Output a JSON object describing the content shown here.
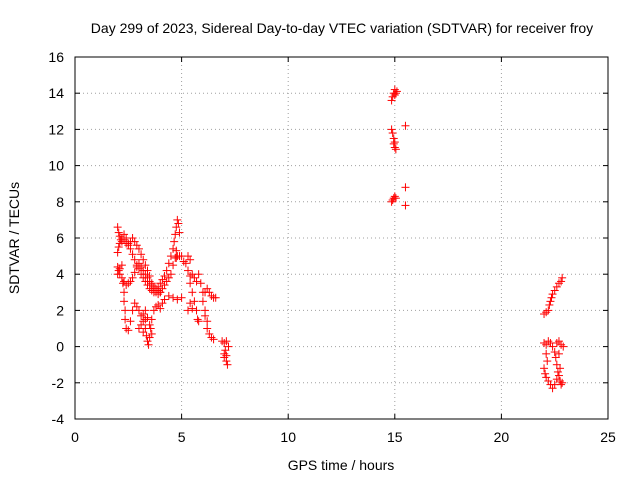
{
  "chart_data": {
    "type": "scatter",
    "title": "Day 299 of 2023, Sidereal Day-to-day VTEC variation (SDTVAR) for receiver froy",
    "xlabel": "GPS time / hours",
    "ylabel": "SDTVAR / TECUs",
    "xlim": [
      0,
      25
    ],
    "ylim": [
      -4,
      16
    ],
    "xticks": [
      "0",
      "5",
      "10",
      "15",
      "20",
      "25"
    ],
    "yticks": [
      "-4",
      "-2",
      "0",
      "2",
      "4",
      "6",
      "8",
      "10",
      "12",
      "14",
      "16"
    ],
    "grid": true,
    "marker": "+",
    "color": "#ff0000",
    "series": [
      {
        "name": "SDTVAR",
        "points": [
          [
            2.0,
            6.6
          ],
          [
            2.05,
            6.3
          ],
          [
            2.1,
            6.1
          ],
          [
            2.15,
            5.9
          ],
          [
            2.2,
            5.8
          ],
          [
            2.3,
            5.9
          ],
          [
            2.4,
            5.7
          ],
          [
            2.5,
            5.6
          ],
          [
            2.6,
            5.8
          ],
          [
            2.7,
            6.0
          ],
          [
            2.8,
            5.8
          ],
          [
            2.9,
            5.6
          ],
          [
            3.0,
            5.4
          ],
          [
            3.1,
            5.1
          ],
          [
            3.2,
            4.8
          ],
          [
            3.3,
            4.5
          ],
          [
            3.4,
            4.2
          ],
          [
            3.5,
            3.9
          ],
          [
            3.6,
            3.5
          ],
          [
            3.7,
            3.2
          ],
          [
            3.8,
            3.0
          ],
          [
            3.9,
            2.9
          ],
          [
            4.0,
            3.0
          ],
          [
            4.1,
            3.2
          ],
          [
            4.2,
            3.4
          ],
          [
            4.3,
            3.6
          ],
          [
            4.4,
            3.8
          ],
          [
            4.5,
            4.0
          ],
          [
            4.6,
            4.5
          ],
          [
            4.7,
            4.9
          ],
          [
            4.75,
            5.3
          ],
          [
            2.0,
            5.2
          ],
          [
            2.05,
            5.5
          ],
          [
            2.1,
            5.7
          ],
          [
            2.2,
            6.0
          ],
          [
            2.3,
            6.2
          ],
          [
            2.4,
            6.0
          ],
          [
            2.5,
            5.7
          ],
          [
            2.6,
            5.4
          ],
          [
            2.7,
            5.1
          ],
          [
            2.8,
            4.8
          ],
          [
            2.9,
            4.5
          ],
          [
            3.0,
            4.3
          ],
          [
            3.1,
            4.0
          ],
          [
            3.2,
            3.8
          ],
          [
            3.3,
            3.6
          ],
          [
            3.4,
            3.4
          ],
          [
            3.5,
            3.2
          ],
          [
            3.6,
            3.1
          ],
          [
            3.7,
            3.0
          ],
          [
            3.8,
            3.1
          ],
          [
            3.9,
            3.3
          ],
          [
            4.0,
            3.5
          ],
          [
            4.1,
            3.7
          ],
          [
            4.2,
            3.9
          ],
          [
            4.3,
            4.2
          ],
          [
            4.4,
            4.6
          ],
          [
            4.5,
            5.0
          ],
          [
            4.6,
            5.4
          ],
          [
            4.65,
            5.8
          ],
          [
            4.7,
            6.2
          ],
          [
            4.75,
            6.6
          ],
          [
            4.8,
            7.0
          ],
          [
            4.85,
            6.8
          ],
          [
            4.9,
            6.3
          ],
          [
            2.0,
            4.4
          ],
          [
            2.05,
            4.2
          ],
          [
            2.1,
            4.0
          ],
          [
            2.2,
            3.8
          ],
          [
            2.3,
            3.6
          ],
          [
            2.4,
            3.4
          ],
          [
            2.5,
            3.5
          ],
          [
            2.6,
            3.6
          ],
          [
            2.7,
            3.8
          ],
          [
            2.8,
            4.1
          ],
          [
            2.9,
            4.4
          ],
          [
            3.0,
            4.6
          ],
          [
            3.1,
            4.4
          ],
          [
            3.2,
            4.2
          ],
          [
            3.3,
            4.0
          ],
          [
            3.4,
            3.8
          ],
          [
            3.5,
            3.6
          ],
          [
            3.6,
            3.4
          ],
          [
            3.7,
            3.3
          ],
          [
            3.8,
            3.2
          ],
          [
            3.9,
            3.1
          ],
          [
            4.0,
            3.0
          ],
          [
            2.0,
            4.0
          ],
          [
            2.1,
            4.3
          ],
          [
            2.2,
            4.5
          ],
          [
            2.25,
            3.5
          ],
          [
            2.3,
            3.0
          ],
          [
            2.3,
            2.5
          ],
          [
            2.35,
            2.0
          ],
          [
            2.35,
            1.5
          ],
          [
            2.4,
            1.0
          ],
          [
            2.5,
            0.9
          ],
          [
            2.6,
            1.4
          ],
          [
            2.7,
            2.0
          ],
          [
            2.8,
            2.4
          ],
          [
            2.9,
            2.2
          ],
          [
            3.0,
            2.0
          ],
          [
            3.1,
            1.7
          ],
          [
            3.2,
            1.4
          ],
          [
            3.3,
            1.0
          ],
          [
            3.35,
            0.6
          ],
          [
            3.4,
            0.3
          ],
          [
            3.45,
            0.1
          ],
          [
            3.5,
            0.5
          ],
          [
            3.55,
            1.0
          ],
          [
            3.6,
            1.5
          ],
          [
            3.7,
            2.0
          ],
          [
            3.8,
            2.2
          ],
          [
            3.9,
            2.3
          ],
          [
            4.0,
            2.1
          ],
          [
            4.1,
            2.4
          ],
          [
            4.2,
            2.6
          ],
          [
            4.4,
            2.8
          ],
          [
            4.6,
            2.7
          ],
          [
            4.8,
            2.6
          ],
          [
            5.0,
            2.7
          ],
          [
            3.0,
            1.0
          ],
          [
            3.1,
            1.2
          ],
          [
            3.2,
            1.8
          ],
          [
            3.3,
            2.0
          ],
          [
            3.4,
            1.6
          ],
          [
            3.5,
            1.2
          ],
          [
            3.6,
            0.7
          ],
          [
            3.3,
            1.5
          ],
          [
            3.2,
            0.8
          ],
          [
            4.75,
            4.9
          ],
          [
            4.8,
            5.0
          ],
          [
            4.9,
            5.0
          ],
          [
            5.0,
            5.0
          ],
          [
            5.1,
            4.7
          ],
          [
            5.2,
            4.6
          ],
          [
            5.3,
            5.0
          ],
          [
            5.4,
            4.8
          ],
          [
            5.3,
            4.2
          ],
          [
            5.4,
            3.5
          ],
          [
            5.5,
            3.0
          ],
          [
            5.6,
            2.5
          ],
          [
            5.7,
            2.0
          ],
          [
            5.75,
            1.5
          ],
          [
            5.8,
            1.4
          ],
          [
            5.4,
            3.9
          ],
          [
            5.5,
            4.0
          ],
          [
            5.6,
            3.8
          ],
          [
            5.7,
            3.6
          ],
          [
            5.8,
            4.0
          ],
          [
            5.9,
            3.5
          ],
          [
            6.0,
            3.0
          ],
          [
            6.0,
            2.5
          ],
          [
            6.1,
            2.0
          ],
          [
            6.1,
            1.7
          ],
          [
            6.2,
            1.4
          ],
          [
            6.2,
            1.0
          ],
          [
            6.3,
            0.7
          ],
          [
            6.4,
            0.5
          ],
          [
            6.5,
            0.4
          ],
          [
            6.1,
            3.0
          ],
          [
            6.2,
            3.2
          ],
          [
            6.3,
            3.0
          ],
          [
            6.4,
            2.8
          ],
          [
            6.5,
            2.7
          ],
          [
            6.6,
            2.7
          ],
          [
            5.5,
            2.1
          ],
          [
            5.4,
            2.4
          ],
          [
            5.3,
            2.0
          ],
          [
            6.9,
            0.3
          ],
          [
            7.0,
            0.2
          ],
          [
            7.05,
            -0.2
          ],
          [
            7.0,
            -0.4
          ],
          [
            7.1,
            -0.5
          ],
          [
            7.1,
            -0.8
          ],
          [
            7.15,
            -1.0
          ],
          [
            7.2,
            0.0
          ],
          [
            7.1,
            0.3
          ],
          [
            7.0,
            -0.6
          ],
          [
            14.85,
            8.0
          ],
          [
            14.9,
            8.1
          ],
          [
            14.95,
            8.2
          ],
          [
            15.0,
            8.3
          ],
          [
            15.05,
            8.2
          ],
          [
            14.85,
            12.0
          ],
          [
            14.9,
            11.8
          ],
          [
            14.95,
            11.5
          ],
          [
            15.0,
            11.3
          ],
          [
            15.0,
            11.0
          ],
          [
            15.05,
            10.9
          ],
          [
            14.95,
            11.2
          ],
          [
            14.85,
            13.6
          ],
          [
            14.9,
            13.8
          ],
          [
            14.95,
            14.0
          ],
          [
            15.0,
            14.2
          ],
          [
            15.05,
            14.0
          ],
          [
            15.1,
            14.1
          ],
          [
            15.0,
            13.9
          ],
          [
            15.5,
            12.2
          ],
          [
            15.5,
            8.8
          ],
          [
            15.5,
            7.8
          ],
          [
            22.0,
            1.8
          ],
          [
            22.1,
            1.9
          ],
          [
            22.2,
            2.0
          ],
          [
            22.25,
            2.3
          ],
          [
            22.3,
            2.5
          ],
          [
            22.35,
            2.7
          ],
          [
            22.4,
            2.9
          ],
          [
            22.5,
            3.1
          ],
          [
            22.6,
            3.3
          ],
          [
            22.7,
            3.5
          ],
          [
            22.8,
            3.6
          ],
          [
            22.85,
            3.8
          ],
          [
            22.0,
            -1.2
          ],
          [
            22.05,
            -1.5
          ],
          [
            22.1,
            -1.7
          ],
          [
            22.2,
            -1.9
          ],
          [
            22.3,
            -2.1
          ],
          [
            22.4,
            -2.3
          ],
          [
            22.5,
            -2.1
          ],
          [
            22.6,
            -1.8
          ],
          [
            22.65,
            -1.4
          ],
          [
            22.6,
            -1.0
          ],
          [
            22.55,
            -0.6
          ],
          [
            22.5,
            -0.3
          ],
          [
            22.4,
            0.0
          ],
          [
            22.3,
            0.2
          ],
          [
            22.2,
            0.3
          ],
          [
            22.1,
            0.1
          ],
          [
            22.0,
            0.2
          ],
          [
            22.6,
            0.2
          ],
          [
            22.7,
            0.3
          ],
          [
            22.8,
            0.1
          ],
          [
            22.9,
            0.0
          ],
          [
            22.7,
            -1.6
          ],
          [
            22.75,
            -1.9
          ],
          [
            22.8,
            -2.1
          ],
          [
            22.85,
            -2.0
          ],
          [
            22.7,
            -0.4
          ],
          [
            22.75,
            -1.2
          ],
          [
            22.1,
            -0.4
          ],
          [
            22.15,
            -0.8
          ]
        ]
      }
    ]
  }
}
